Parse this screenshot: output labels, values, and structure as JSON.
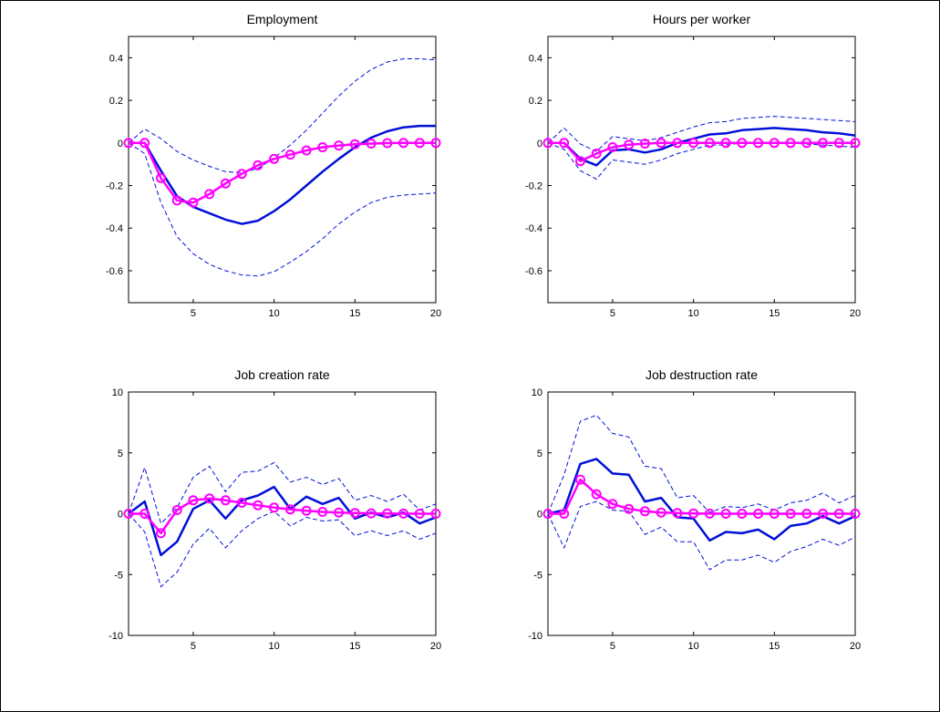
{
  "colors": {
    "irf": "#0010d8",
    "band": "#0010d8",
    "model": "#ff00ff",
    "axes": "#000000",
    "background": "#ffffff"
  },
  "chart_data": [
    {
      "type": "line",
      "title": "Employment",
      "x": [
        1,
        2,
        3,
        4,
        5,
        6,
        7,
        8,
        9,
        10,
        11,
        12,
        13,
        14,
        15,
        16,
        17,
        18,
        19,
        20
      ],
      "xlim": [
        1,
        20
      ],
      "ylim": [
        -0.75,
        0.5
      ],
      "xticks": [
        5,
        10,
        15,
        20
      ],
      "yticks": [
        -0.6,
        -0.4,
        -0.2,
        0,
        0.2,
        0.4
      ],
      "xticklabels": [
        "5",
        "10",
        "15",
        "20"
      ],
      "yticklabels": [
        "-0.6",
        "-0.4",
        "-0.2",
        "0",
        "0.2",
        "0.4"
      ],
      "series": [
        {
          "style": "solid",
          "color": "#0010d8",
          "values": [
            0,
            0,
            -0.13,
            -0.25,
            -0.3,
            -0.33,
            -0.36,
            -0.38,
            -0.365,
            -0.32,
            -0.265,
            -0.2,
            -0.135,
            -0.075,
            -0.02,
            0.025,
            0.055,
            0.073,
            0.08,
            0.08
          ]
        },
        {
          "style": "dashed",
          "color": "#0010d8",
          "values": [
            0,
            0.065,
            0.02,
            -0.04,
            -0.08,
            -0.11,
            -0.135,
            -0.14,
            -0.12,
            -0.07,
            -0.01,
            0.06,
            0.14,
            0.22,
            0.29,
            0.345,
            0.38,
            0.395,
            0.395,
            0.39
          ]
        },
        {
          "style": "dashed",
          "color": "#0010d8",
          "values": [
            0,
            -0.05,
            -0.28,
            -0.44,
            -0.52,
            -0.57,
            -0.6,
            -0.62,
            -0.625,
            -0.605,
            -0.56,
            -0.51,
            -0.45,
            -0.38,
            -0.325,
            -0.28,
            -0.255,
            -0.245,
            -0.24,
            -0.235
          ]
        },
        {
          "style": "marker",
          "color": "#ff00ff",
          "values": [
            0,
            0,
            -0.165,
            -0.27,
            -0.28,
            -0.24,
            -0.19,
            -0.145,
            -0.105,
            -0.075,
            -0.055,
            -0.035,
            -0.02,
            -0.012,
            -0.006,
            -0.003,
            -0.001,
            0,
            0,
            0
          ]
        }
      ]
    },
    {
      "type": "line",
      "title": "Hours per worker",
      "x": [
        1,
        2,
        3,
        4,
        5,
        6,
        7,
        8,
        9,
        10,
        11,
        12,
        13,
        14,
        15,
        16,
        17,
        18,
        19,
        20
      ],
      "xlim": [
        1,
        20
      ],
      "ylim": [
        -0.75,
        0.5
      ],
      "xticks": [
        5,
        10,
        15,
        20
      ],
      "yticks": [
        -0.6,
        -0.4,
        -0.2,
        0,
        0.2,
        0.4
      ],
      "xticklabels": [
        "5",
        "10",
        "15",
        "20"
      ],
      "yticklabels": [
        "-0.6",
        "-0.4",
        "-0.2",
        "0",
        "0.2",
        "0.4"
      ],
      "series": [
        {
          "style": "solid",
          "color": "#0010d8",
          "values": [
            0,
            0,
            -0.075,
            -0.105,
            -0.035,
            -0.03,
            -0.045,
            -0.03,
            0,
            0.02,
            0.04,
            0.045,
            0.06,
            0.065,
            0.07,
            0.065,
            0.06,
            0.05,
            0.045,
            0.035
          ]
        },
        {
          "style": "dashed",
          "color": "#0010d8",
          "values": [
            0,
            0.07,
            -0.005,
            -0.04,
            0.03,
            0.02,
            0.01,
            0.025,
            0.05,
            0.075,
            0.095,
            0.1,
            0.115,
            0.12,
            0.125,
            0.12,
            0.115,
            0.11,
            0.105,
            0.1
          ]
        },
        {
          "style": "dashed",
          "color": "#0010d8",
          "values": [
            0,
            -0.03,
            -0.13,
            -0.17,
            -0.08,
            -0.09,
            -0.1,
            -0.08,
            -0.05,
            -0.03,
            -0.01,
            -0.01,
            0,
            0,
            0,
            0,
            -0.005,
            -0.01,
            -0.015,
            -0.02
          ]
        },
        {
          "style": "marker",
          "color": "#ff00ff",
          "values": [
            0,
            0,
            -0.085,
            -0.05,
            -0.02,
            -0.008,
            -0.003,
            0,
            0,
            0,
            0,
            0,
            0,
            0,
            0,
            0,
            0,
            0,
            0,
            0
          ]
        }
      ]
    },
    {
      "type": "line",
      "title": "Job creation rate",
      "x": [
        1,
        2,
        3,
        4,
        5,
        6,
        7,
        8,
        9,
        10,
        11,
        12,
        13,
        14,
        15,
        16,
        17,
        18,
        19,
        20
      ],
      "xlim": [
        1,
        20
      ],
      "ylim": [
        -10,
        10
      ],
      "xticks": [
        5,
        10,
        15,
        20
      ],
      "yticks": [
        -10,
        -5,
        0,
        5,
        10
      ],
      "xticklabels": [
        "5",
        "10",
        "15",
        "20"
      ],
      "yticklabels": [
        "-10",
        "-5",
        "0",
        "5",
        "10"
      ],
      "series": [
        {
          "style": "solid",
          "color": "#0010d8",
          "values": [
            0,
            1,
            -3.4,
            -2.3,
            0.4,
            1.1,
            -0.4,
            1.1,
            1.5,
            2.2,
            0.4,
            1.4,
            0.8,
            1.3,
            -0.4,
            0.1,
            -0.3,
            0.1,
            -0.8,
            -0.3
          ]
        },
        {
          "style": "dashed",
          "color": "#0010d8",
          "values": [
            0,
            3.8,
            -0.8,
            0.5,
            3,
            3.9,
            1.8,
            3.4,
            3.5,
            4.2,
            2.6,
            3,
            2.4,
            2.9,
            1.1,
            1.5,
            1,
            1.6,
            0.3,
            0.8
          ]
        },
        {
          "style": "dashed",
          "color": "#0010d8",
          "values": [
            0,
            -1.5,
            -6,
            -4.8,
            -2.5,
            -1.2,
            -2.8,
            -1.4,
            -0.4,
            0.2,
            -1,
            -0.3,
            -0.6,
            -0.5,
            -1.8,
            -1.4,
            -1.8,
            -1.4,
            -2.1,
            -1.6
          ]
        },
        {
          "style": "marker",
          "color": "#ff00ff",
          "values": [
            0,
            0,
            -1.6,
            0.3,
            1.1,
            1.25,
            1.1,
            0.9,
            0.7,
            0.5,
            0.35,
            0.25,
            0.15,
            0.1,
            0.06,
            0.03,
            0.02,
            0.01,
            0,
            0
          ]
        }
      ]
    },
    {
      "type": "line",
      "title": "Job destruction rate",
      "x": [
        1,
        2,
        3,
        4,
        5,
        6,
        7,
        8,
        9,
        10,
        11,
        12,
        13,
        14,
        15,
        16,
        17,
        18,
        19,
        20
      ],
      "xlim": [
        1,
        20
      ],
      "ylim": [
        -10,
        10
      ],
      "xticks": [
        5,
        10,
        15,
        20
      ],
      "yticks": [
        -10,
        -5,
        0,
        5,
        10
      ],
      "xticklabels": [
        "5",
        "10",
        "15",
        "20"
      ],
      "yticklabels": [
        "-10",
        "-5",
        "0",
        "5",
        "10"
      ],
      "series": [
        {
          "style": "solid",
          "color": "#0010d8",
          "values": [
            0,
            0.3,
            4.1,
            4.5,
            3.3,
            3.2,
            1,
            1.3,
            -0.3,
            -0.4,
            -2.2,
            -1.5,
            -1.6,
            -1.3,
            -2.1,
            -1,
            -0.8,
            -0.2,
            -0.8,
            -0.2
          ]
        },
        {
          "style": "dashed",
          "color": "#0010d8",
          "values": [
            0,
            3.2,
            7.6,
            8.1,
            6.6,
            6.3,
            3.9,
            3.7,
            1.3,
            1.5,
            0.1,
            0.6,
            0.5,
            0.8,
            0.3,
            0.9,
            1.1,
            1.7,
            0.9,
            1.5
          ]
        },
        {
          "style": "dashed",
          "color": "#0010d8",
          "values": [
            0,
            -2.8,
            0.6,
            1,
            0.3,
            0.2,
            -1.7,
            -1.1,
            -2.3,
            -2.3,
            -4.6,
            -3.8,
            -3.8,
            -3.4,
            -4,
            -3.1,
            -2.7,
            -2.1,
            -2.6,
            -1.9
          ]
        },
        {
          "style": "marker",
          "color": "#ff00ff",
          "values": [
            0,
            0,
            2.8,
            1.6,
            0.8,
            0.4,
            0.2,
            0.1,
            0.05,
            0.02,
            0.01,
            0,
            0,
            0,
            0,
            0,
            0,
            0,
            0,
            0
          ]
        }
      ]
    }
  ]
}
